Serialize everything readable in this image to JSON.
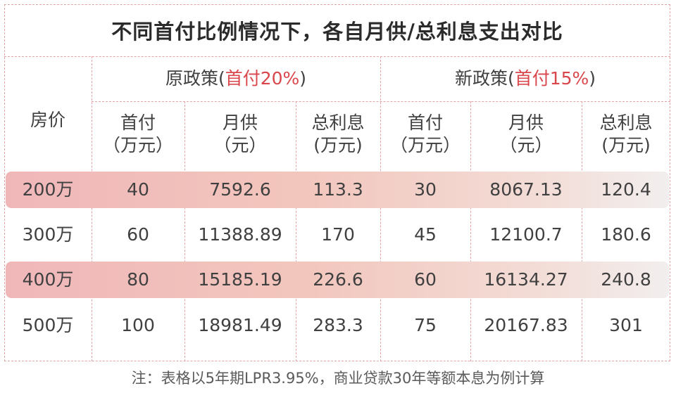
{
  "title": "不同首付比例情况下，各自月供/总利息支出对比",
  "header": {
    "price_label": "房价",
    "old_policy": {
      "name": "原政策(",
      "highlight": "首付20%",
      "close": ")"
    },
    "new_policy": {
      "name": "新政策(",
      "highlight": "首付15%",
      "close": ")"
    },
    "columns": [
      {
        "line1": "首付",
        "line2": "（万元）"
      },
      {
        "line1": "月供",
        "line2": "（元）"
      },
      {
        "line1": "总利息",
        "line2": "(万元)"
      },
      {
        "line1": "首付",
        "line2": "（万元）"
      },
      {
        "line1": "月供",
        "line2": "（元）"
      },
      {
        "line1": "总利息",
        "line2": "(万元)"
      }
    ]
  },
  "rows": [
    {
      "price": "200万",
      "old_down": "40",
      "old_monthly": "7592.6",
      "old_interest": "113.3",
      "new_down": "30",
      "new_monthly": "8067.13",
      "new_interest": "120.4",
      "highlighted": true
    },
    {
      "price": "300万",
      "old_down": "60",
      "old_monthly": "11388.89",
      "old_interest": "170",
      "new_down": "45",
      "new_monthly": "12100.7",
      "new_interest": "180.6",
      "highlighted": false
    },
    {
      "price": "400万",
      "old_down": "80",
      "old_monthly": "15185.19",
      "old_interest": "226.6",
      "new_down": "60",
      "new_monthly": "16134.27",
      "new_interest": "240.8",
      "highlighted": true
    },
    {
      "price": "500万",
      "old_down": "100",
      "old_monthly": "18981.49",
      "old_interest": "283.3",
      "new_down": "75",
      "new_monthly": "20167.83",
      "new_interest": "301",
      "highlighted": false
    }
  ],
  "note": "注：表格以5年期LPR3.95%，商业贷款30年等额本息为例计算",
  "colors": {
    "border": "#e3a4a8",
    "highlight_text": "#d9464b",
    "band": "#f0b7b9"
  }
}
